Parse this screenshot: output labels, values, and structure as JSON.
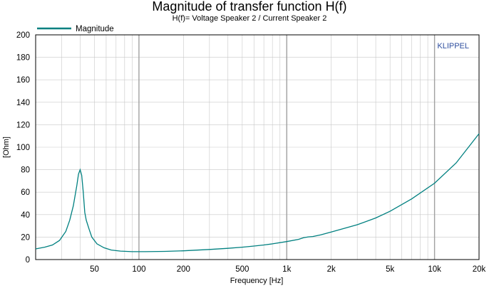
{
  "chart_data": {
    "type": "line",
    "title": "Magnitude of transfer function H(f)",
    "subtitle": "H(f)= Voltage Speaker 2 / Current Speaker 2",
    "xlabel": "Frequency [Hz]",
    "ylabel": "[Ohm]",
    "x_scale": "log",
    "xlim": [
      20,
      20000
    ],
    "ylim": [
      0,
      200
    ],
    "grid": true,
    "legend_position": "top-left",
    "brand_label": "KLIPPEL",
    "x_ticks": [
      {
        "value": 50,
        "label": "50"
      },
      {
        "value": 100,
        "label": "100"
      },
      {
        "value": 200,
        "label": "200"
      },
      {
        "value": 500,
        "label": "500"
      },
      {
        "value": 1000,
        "label": "1k"
      },
      {
        "value": 2000,
        "label": "2k"
      },
      {
        "value": 5000,
        "label": "5k"
      },
      {
        "value": 10000,
        "label": "10k"
      },
      {
        "value": 20000,
        "label": "20k"
      }
    ],
    "y_ticks": [
      0,
      20,
      40,
      60,
      80,
      100,
      120,
      140,
      160,
      180,
      200
    ],
    "colors": {
      "series": "#008080",
      "grid": "#c8c8c8",
      "grid_major": "#a0a0a0",
      "axis": "#000000",
      "brand": "#2f4f9f"
    },
    "series": [
      {
        "name": "Magnitude",
        "x": [
          20,
          23,
          26,
          29,
          32,
          34,
          36,
          38,
          39,
          40,
          41,
          42,
          43,
          44,
          46,
          48,
          52,
          58,
          65,
          75,
          90,
          110,
          150,
          200,
          300,
          400,
          500,
          600,
          700,
          800,
          1000,
          1200,
          1300,
          1400,
          1500,
          1700,
          2000,
          3000,
          4000,
          5000,
          7000,
          10000,
          14000,
          20000
        ],
        "y": [
          9.5,
          11,
          13,
          17,
          25,
          35,
          48,
          66,
          76,
          80,
          75,
          60,
          42,
          35,
          27,
          20,
          14,
          10.5,
          8.5,
          7.5,
          7,
          7,
          7.3,
          7.8,
          9,
          10,
          11,
          12,
          13,
          14,
          16,
          18,
          19.5,
          20.2,
          20.5,
          22,
          24.5,
          31,
          37,
          43,
          54,
          68,
          86,
          112
        ]
      }
    ]
  }
}
